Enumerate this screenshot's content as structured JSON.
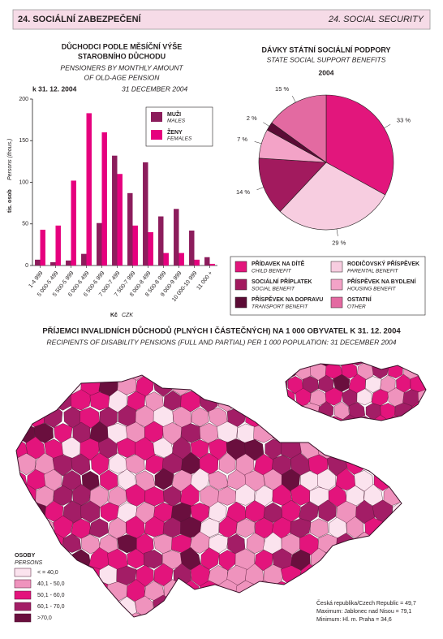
{
  "header": {
    "title_cz": "24. SOCIÁLNÍ ZABEZPEČENÍ",
    "title_en": "24. SOCIAL SECURITY"
  },
  "chart_data": [
    {
      "type": "bar",
      "title": [
        "DŮCHODCI PODLE MĚSÍČNÍ VÝŠE",
        "STAROBNÍHO DŮCHODU"
      ],
      "subtitle": [
        "PENSIONERS BY MONTHLY AMOUNT",
        "OF OLD-AGE PENSION"
      ],
      "date": "k 31. 12. 2004",
      "date_en": "31 DECEMBER 2004",
      "ylabel": "tis. osob",
      "ylabel_en": "Persons (thous.)",
      "xlabel": "Kč",
      "xlabel_en": "CZK",
      "categories": [
        "1-4 999",
        "5 000-5 499",
        "5 500-5 999",
        "6 000-6 499",
        "6 500-6 999",
        "7 000-7 499",
        "7 500-7 999",
        "8 000-8 499",
        "8 500-8 999",
        "9 000-9 999",
        "10 000-10 999",
        "11 000 +"
      ],
      "series": [
        {
          "name": "MUŽI",
          "name_en": "MALES",
          "color": "#8c1d5c",
          "values": [
            7,
            4,
            6,
            14,
            51,
            132,
            87,
            124,
            59,
            68,
            42,
            10
          ]
        },
        {
          "name": "ŽENY",
          "name_en": "FEMALES",
          "color": "#e6007e",
          "values": [
            43,
            48,
            102,
            183,
            160,
            110,
            48,
            40,
            15,
            15,
            7,
            2
          ]
        }
      ],
      "ylim": [
        0,
        200
      ],
      "yticks": [
        0,
        50,
        100,
        150,
        200
      ],
      "grid": false,
      "legend": "top-right"
    },
    {
      "type": "pie",
      "title": "DÁVKY STÁTNÍ SOCIÁLNÍ PODPORY",
      "subtitle": "STATE SOCIAL SUPPORT BENEFITS",
      "year": "2004",
      "categories": [
        "PŘÍDAVEK NA DÍTĚ",
        "RODIČOVSKÝ PŘÍSPĚVEK",
        "SOCIÁLNÍ PŘÍPLATEK",
        "PŘÍSPĚVEK NA BYDLENÍ",
        "PŘÍSPĚVEK NA DOPRAVU",
        "OSTATNÍ"
      ],
      "categories_en": [
        "CHILD BENEFIT",
        "PARENTAL BENEFIT",
        "SOCIAL BENEFIT",
        "HOUSING BENEFIT",
        "TRANSPORT BENEFIT",
        "OTHER"
      ],
      "values": [
        33,
        29,
        14,
        7,
        2,
        15
      ],
      "value_labels": [
        "33 %",
        "29 %",
        "14 %",
        "7 %",
        "2 %",
        "15 %"
      ],
      "colors": [
        "#e2167c",
        "#f7cde0",
        "#a21a5e",
        "#f3a3c7",
        "#5b0b35",
        "#e36aa1"
      ]
    }
  ],
  "map": {
    "title": "PŘÍJEMCI INVALIDNÍCH DŮCHODŮ (PLNÝCH I ČÁSTEČNÝCH) NA 1 000 OBYVATEL K 31. 12. 2004",
    "subtitle": "RECIPIENTS OF DISABILITY PENSIONS (FULL AND PARTIAL) PER 1 000 POPULATION: 31 DECEMBER 2004",
    "legend": {
      "title": "OSOBY",
      "title_en": "PERSONS",
      "classes": [
        "< = 40,0",
        "40,1 - 50,0",
        "50,1 - 60,0",
        "60,1 - 70,0",
        ">70,0"
      ],
      "colors": [
        "#fbe3ee",
        "#ef93bd",
        "#e3147c",
        "#a31d66",
        "#6a0f3e"
      ]
    },
    "notes": [
      "Česká republika/Czech Republic = 49,7",
      "Maximum: Jablonec nad Nisou = 79,1",
      "Minimum: Hl. m. Praha = 34,6"
    ]
  }
}
